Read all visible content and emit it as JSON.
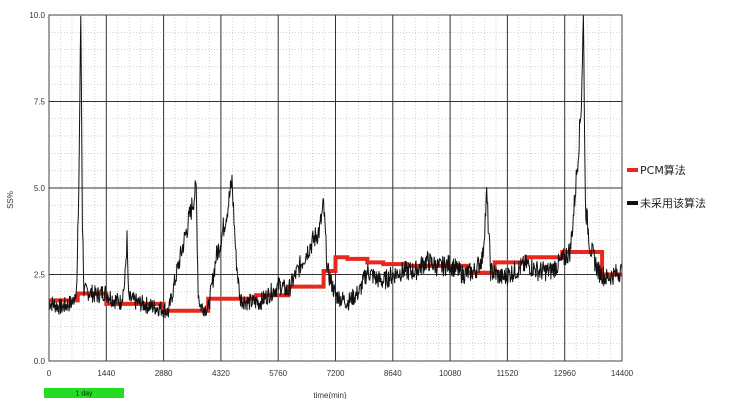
{
  "chart_data": {
    "type": "line",
    "title": "",
    "xlabel": "time(min)",
    "ylabel": "SS%",
    "xlim": [
      0,
      14400
    ],
    "ylim": [
      0,
      10
    ],
    "x_ticks": [
      0,
      1440,
      2880,
      4320,
      5760,
      7200,
      8640,
      10080,
      11520,
      12960,
      14400
    ],
    "y_ticks": [
      "0.0",
      "2.5",
      "5.0",
      "7.5",
      "10.0"
    ],
    "y_tick_values": [
      0,
      2.5,
      5,
      7.5,
      10
    ],
    "grid": true,
    "legend_position": "right",
    "x_badge": "1 day",
    "series": [
      {
        "name": "PCM算法",
        "color": "#e8281e",
        "style": "step",
        "points": [
          [
            0,
            1.75
          ],
          [
            720,
            1.75
          ],
          [
            720,
            1.95
          ],
          [
            1440,
            1.95
          ],
          [
            1440,
            1.65
          ],
          [
            2880,
            1.65
          ],
          [
            2880,
            1.45
          ],
          [
            4000,
            1.45
          ],
          [
            4000,
            1.8
          ],
          [
            5200,
            1.8
          ],
          [
            5200,
            1.9
          ],
          [
            6000,
            1.9
          ],
          [
            6000,
            2.15
          ],
          [
            6900,
            2.15
          ],
          [
            6900,
            2.6
          ],
          [
            7200,
            2.6
          ],
          [
            7200,
            3.0
          ],
          [
            7500,
            3.0
          ],
          [
            7500,
            2.95
          ],
          [
            8000,
            2.95
          ],
          [
            8000,
            2.85
          ],
          [
            8400,
            2.85
          ],
          [
            8400,
            2.8
          ],
          [
            9000,
            2.8
          ],
          [
            9000,
            2.75
          ],
          [
            10500,
            2.75
          ],
          [
            10500,
            2.55
          ],
          [
            11200,
            2.55
          ],
          [
            11200,
            2.85
          ],
          [
            12000,
            2.85
          ],
          [
            12000,
            3.0
          ],
          [
            12900,
            3.0
          ],
          [
            12900,
            3.15
          ],
          [
            13900,
            3.15
          ],
          [
            13900,
            2.5
          ],
          [
            14400,
            2.5
          ]
        ]
      },
      {
        "name": "未采用该算法",
        "color": "#111111",
        "style": "noisy",
        "points": [
          [
            0,
            1.7
          ],
          [
            300,
            1.55
          ],
          [
            600,
            1.7
          ],
          [
            700,
            2.2
          ],
          [
            750,
            5.0
          ],
          [
            800,
            10.0
          ],
          [
            840,
            4.0
          ],
          [
            880,
            2.0
          ],
          [
            1000,
            2.0
          ],
          [
            1200,
            1.9
          ],
          [
            1400,
            2.0
          ],
          [
            1600,
            1.8
          ],
          [
            1800,
            1.7
          ],
          [
            1900,
            2.2
          ],
          [
            1960,
            3.5
          ],
          [
            2000,
            1.8
          ],
          [
            2200,
            1.7
          ],
          [
            2500,
            1.6
          ],
          [
            2880,
            1.5
          ],
          [
            3000,
            1.4
          ],
          [
            3200,
            2.5
          ],
          [
            3400,
            3.5
          ],
          [
            3600,
            4.5
          ],
          [
            3700,
            5.0
          ],
          [
            3750,
            2.0
          ],
          [
            3800,
            1.6
          ],
          [
            4000,
            1.5
          ],
          [
            4100,
            2.2
          ],
          [
            4200,
            3.0
          ],
          [
            4320,
            3.5
          ],
          [
            4500,
            4.5
          ],
          [
            4600,
            5.2
          ],
          [
            4700,
            3.0
          ],
          [
            4800,
            1.8
          ],
          [
            5000,
            1.7
          ],
          [
            5300,
            1.7
          ],
          [
            5500,
            1.9
          ],
          [
            5800,
            2.2
          ],
          [
            6000,
            2.0
          ],
          [
            6200,
            2.5
          ],
          [
            6500,
            3.2
          ],
          [
            6800,
            3.8
          ],
          [
            6900,
            4.5
          ],
          [
            7000,
            2.6
          ],
          [
            7200,
            1.9
          ],
          [
            7500,
            1.7
          ],
          [
            7800,
            2.0
          ],
          [
            8000,
            2.6
          ],
          [
            8200,
            2.4
          ],
          [
            8400,
            2.3
          ],
          [
            8640,
            2.5
          ],
          [
            8900,
            2.6
          ],
          [
            9200,
            2.6
          ],
          [
            9500,
            2.9
          ],
          [
            9800,
            2.7
          ],
          [
            10080,
            2.8
          ],
          [
            10400,
            2.5
          ],
          [
            10700,
            2.6
          ],
          [
            10900,
            3.0
          ],
          [
            11000,
            4.8
          ],
          [
            11100,
            2.6
          ],
          [
            11400,
            2.4
          ],
          [
            11700,
            2.6
          ],
          [
            12000,
            2.8
          ],
          [
            12300,
            2.6
          ],
          [
            12600,
            2.6
          ],
          [
            12900,
            2.9
          ],
          [
            13100,
            3.2
          ],
          [
            13200,
            4.5
          ],
          [
            13300,
            6.0
          ],
          [
            13380,
            7.5
          ],
          [
            13430,
            10.0
          ],
          [
            13480,
            4.5
          ],
          [
            13600,
            3.3
          ],
          [
            13800,
            2.6
          ],
          [
            14000,
            2.4
          ],
          [
            14200,
            2.5
          ],
          [
            14400,
            2.6
          ]
        ]
      }
    ]
  }
}
